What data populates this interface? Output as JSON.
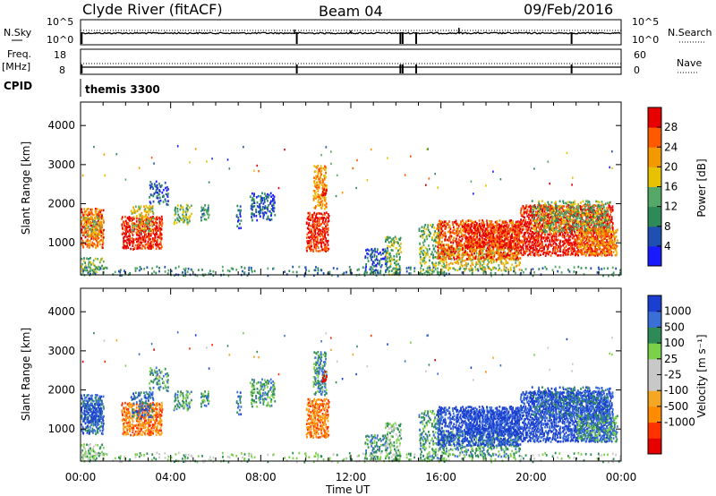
{
  "header": {
    "station": "Clyde River (fitACF)",
    "beam": "Beam 04",
    "date": "09/Feb/2016"
  },
  "strips": {
    "nsky_label": "N.Sky",
    "nsearch_label": "N.Search",
    "freq_label": "Freq.",
    "freq_unit": "[MHz]",
    "nave_label": "Nave",
    "cpid_label": "CPID",
    "cpid_value": "themis 3300",
    "noise_ticks": {
      "top": "10^5",
      "bottom": "10^0"
    },
    "freq_ticks": {
      "top": "18",
      "bottom": "8"
    },
    "nave_ticks": {
      "top": "60",
      "bottom": "0"
    }
  },
  "x_axis": {
    "label": "Time UT",
    "ticks": [
      "00:00",
      "04:00",
      "08:00",
      "12:00",
      "16:00",
      "20:00",
      "00:00"
    ]
  },
  "colors": {
    "power_scale": [
      "#1a1aff",
      "#1f4fb0",
      "#2e8b57",
      "#55a868",
      "#e6c200",
      "#f29900",
      "#ff5a00",
      "#e60000"
    ],
    "velocity_scale": [
      "#e60000",
      "#ff3300",
      "#ff8c00",
      "#f5a623",
      "#c8c8c8",
      "#c8c8c8",
      "#7dd04a",
      "#2e8b57",
      "#3a6fd8",
      "#1a3fd0"
    ]
  },
  "chart_data": [
    {
      "type": "heatmap",
      "title": "",
      "xlabel": "Time UT",
      "ylabel": "Slant Range [km]",
      "ylim": [
        180,
        4600
      ],
      "y_ticks": [
        "1000",
        "2000",
        "3000",
        "4000"
      ],
      "colorbar_label": "Power [dB]",
      "colorbar_ticks": [
        "4",
        "8",
        "12",
        "16",
        "20",
        "24",
        "28"
      ]
    },
    {
      "type": "heatmap",
      "title": "",
      "xlabel": "Time UT",
      "ylabel": "Slant Range [km]",
      "ylim": [
        180,
        4600
      ],
      "y_ticks": [
        "1000",
        "2000",
        "3000",
        "4000"
      ],
      "colorbar_label": "Velocity [m s⁻¹]",
      "colorbar_ticks": [
        "1000",
        "500",
        "100",
        "25",
        "-25",
        "-100",
        "-500",
        "-1000"
      ]
    }
  ]
}
